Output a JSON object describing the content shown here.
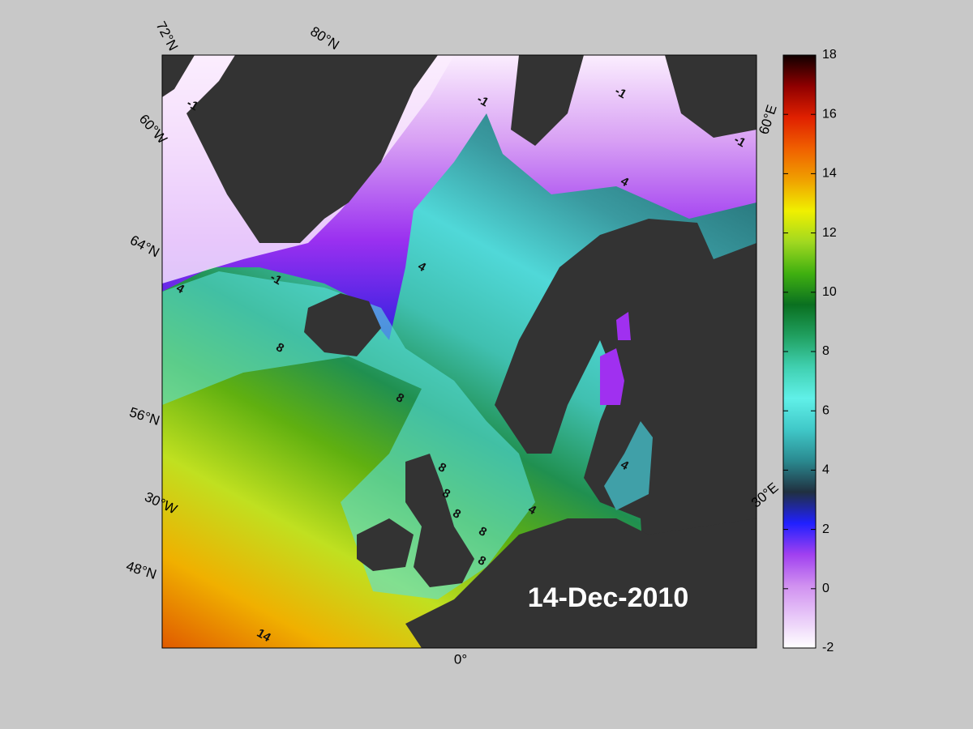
{
  "map": {
    "date": "14-Dec-2010",
    "graticule_labels": [
      "72°N",
      "80°N",
      "60°W",
      "64°N",
      "56°N",
      "30°W",
      "48°N",
      "0°",
      "30°E",
      "60°E"
    ],
    "contour_labels": [
      -1,
      -1,
      -1,
      -1,
      -1,
      4,
      4,
      4,
      8,
      8,
      8,
      8,
      8,
      8,
      8,
      4,
      4,
      14
    ]
  },
  "colorbar": {
    "lim": [
      -2,
      18
    ],
    "ticks": [
      -2,
      0,
      2,
      4,
      6,
      8,
      10,
      12,
      14,
      16,
      18
    ],
    "colormap": [
      "#ffffff",
      "#e8c8f8",
      "#d090f0",
      "#a040f0",
      "#2020ff",
      "#203040",
      "#2a8a90",
      "#40c8c8",
      "#60f0e8",
      "#40d0b0",
      "#20a060",
      "#0a7020",
      "#40b010",
      "#a0d820",
      "#f0f000",
      "#f0a000",
      "#f06000",
      "#e02000",
      "#900000",
      "#100000"
    ]
  }
}
